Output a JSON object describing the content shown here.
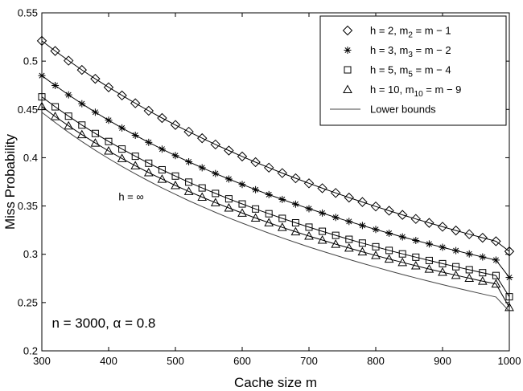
{
  "chart_data": {
    "type": "line",
    "xlabel": "Cache size m",
    "ylabel": "Miss Probability",
    "xlim": [
      300,
      1000
    ],
    "ylim": [
      0.2,
      0.55
    ],
    "xticks": [
      300,
      400,
      500,
      600,
      700,
      800,
      900,
      1000
    ],
    "yticks": [
      0.2,
      0.25,
      0.3,
      0.35,
      0.4,
      0.45,
      0.5,
      0.55
    ],
    "ytick_labels": [
      "0.2",
      "0.25",
      "0.3",
      "0.35",
      "0.4",
      "0.45",
      "0.5",
      "0.55"
    ],
    "grid": false,
    "legend_position": "top-right",
    "x": [
      300,
      320,
      340,
      360,
      380,
      400,
      420,
      440,
      460,
      480,
      500,
      520,
      540,
      560,
      580,
      600,
      620,
      640,
      660,
      680,
      700,
      720,
      740,
      760,
      780,
      800,
      820,
      840,
      860,
      880,
      900,
      920,
      940,
      960,
      980,
      1000
    ],
    "series": [
      {
        "name": "h = 2, m_2 = m − 1",
        "legend": {
          "main": "h = 2, m",
          "sub": "2",
          "tail": " = m − 1"
        },
        "marker": "diamond",
        "values": [
          0.521,
          0.5105,
          0.5005,
          0.4909,
          0.4817,
          0.4729,
          0.4645,
          0.4564,
          0.4486,
          0.4411,
          0.4339,
          0.4269,
          0.4202,
          0.4137,
          0.4074,
          0.4013,
          0.3954,
          0.3897,
          0.3841,
          0.3787,
          0.3735,
          0.3684,
          0.3635,
          0.3587,
          0.3541,
          0.3495,
          0.3451,
          0.3408,
          0.3366,
          0.3325,
          0.3285,
          0.3246,
          0.3208,
          0.3171,
          0.3135,
          0.303
        ]
      },
      {
        "name": "h = 3, m_3 = m − 2",
        "legend": {
          "main": "h = 3, m",
          "sub": "3",
          "tail": " = m − 2"
        },
        "marker": "star",
        "values": [
          0.485,
          0.4748,
          0.4651,
          0.4559,
          0.4471,
          0.4388,
          0.4308,
          0.4232,
          0.4159,
          0.4089,
          0.4022,
          0.3958,
          0.3896,
          0.3836,
          0.3779,
          0.3723,
          0.3669,
          0.3618,
          0.3568,
          0.3519,
          0.3472,
          0.3427,
          0.3382,
          0.334,
          0.3298,
          0.3257,
          0.3218,
          0.318,
          0.3143,
          0.3107,
          0.3072,
          0.3038,
          0.3004,
          0.2972,
          0.294,
          0.276
        ]
      },
      {
        "name": "h = 5, m_5 = m − 4",
        "legend": {
          "main": "h = 5, m",
          "sub": "5",
          "tail": " = m − 4"
        },
        "marker": "square",
        "values": [
          0.463,
          0.4527,
          0.443,
          0.4338,
          0.4251,
          0.4168,
          0.409,
          0.4015,
          0.3943,
          0.3875,
          0.381,
          0.3747,
          0.3687,
          0.363,
          0.3574,
          0.3521,
          0.3469,
          0.342,
          0.3372,
          0.3326,
          0.3281,
          0.3238,
          0.3196,
          0.3155,
          0.3116,
          0.3078,
          0.304,
          0.3004,
          0.297,
          0.2936,
          0.2903,
          0.2871,
          0.284,
          0.2809,
          0.278,
          0.256
        ]
      },
      {
        "name": "h = 10, m_10 = m − 9",
        "legend": {
          "main": "h = 10, m",
          "sub": "10",
          "tail": " = m − 9"
        },
        "marker": "triangle",
        "values": [
          0.453,
          0.4427,
          0.433,
          0.4239,
          0.4152,
          0.407,
          0.3992,
          0.3917,
          0.3846,
          0.3778,
          0.3713,
          0.3651,
          0.3592,
          0.3535,
          0.348,
          0.3427,
          0.3376,
          0.3327,
          0.3279,
          0.3234,
          0.3189,
          0.3147,
          0.3105,
          0.3065,
          0.3026,
          0.2988,
          0.2951,
          0.2916,
          0.2881,
          0.2847,
          0.2815,
          0.2783,
          0.2752,
          0.2722,
          0.2693,
          0.245
        ]
      },
      {
        "name": "Lower bounds",
        "legend": {
          "main": "Lower bounds",
          "sub": "",
          "tail": ""
        },
        "marker": "none",
        "values": [
          0.447,
          0.4364,
          0.4263,
          0.4167,
          0.4077,
          0.3991,
          0.391,
          0.3832,
          0.3758,
          0.3687,
          0.362,
          0.3555,
          0.3494,
          0.3434,
          0.3377,
          0.3323,
          0.327,
          0.3219,
          0.317,
          0.3122,
          0.3076,
          0.3032,
          0.2989,
          0.2947,
          0.2906,
          0.2867,
          0.2828,
          0.2791,
          0.2755,
          0.272,
          0.2686,
          0.2653,
          0.262,
          0.2589,
          0.2558,
          0.241
        ]
      }
    ],
    "annotations": [
      {
        "text": "h = ∞",
        "x": 455,
        "y": 0.3595
      },
      {
        "text": "n = 3000, α = 0.8",
        "x": 315,
        "y": 0.229
      }
    ]
  }
}
